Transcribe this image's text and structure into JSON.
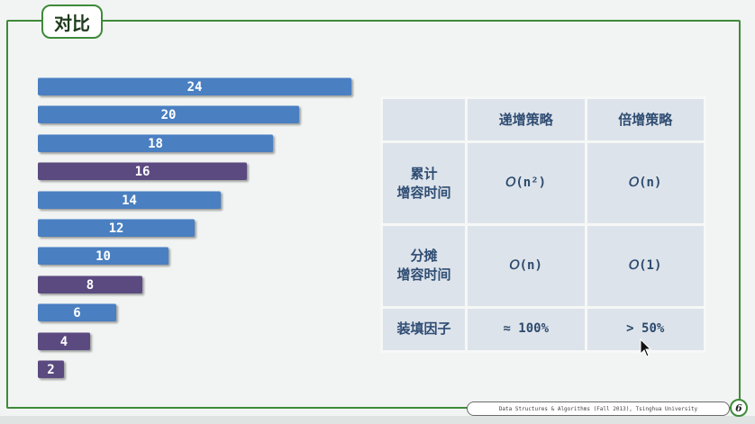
{
  "title": "对比",
  "bars": [
    {
      "label": "24",
      "value": 24,
      "color": "#4a7fc1"
    },
    {
      "label": "20",
      "value": 20,
      "color": "#4a7fc1"
    },
    {
      "label": "18",
      "value": 18,
      "color": "#4a7fc1"
    },
    {
      "label": "16",
      "value": 16,
      "color": "#5b4a80"
    },
    {
      "label": "14",
      "value": 14,
      "color": "#4a7fc1"
    },
    {
      "label": "12",
      "value": 12,
      "color": "#4a7fc1"
    },
    {
      "label": "10",
      "value": 10,
      "color": "#4a7fc1"
    },
    {
      "label": "8",
      "value": 8,
      "color": "#5b4a80"
    },
    {
      "label": "6",
      "value": 6,
      "color": "#4a7fc1"
    },
    {
      "label": "4",
      "value": 4,
      "color": "#5b4a80"
    },
    {
      "label": "2",
      "value": 2,
      "color": "#5b4a80"
    }
  ],
  "table": {
    "col_headers": [
      "递增策略",
      "倍增策略"
    ],
    "rows": [
      {
        "header": [
          "累计",
          "增容时间"
        ],
        "values": [
          "𝑂(n²)",
          "𝑂(n)"
        ]
      },
      {
        "header": [
          "分摊",
          "增容时间"
        ],
        "values": [
          "𝑂(n)",
          "𝑂(1)"
        ]
      },
      {
        "header": [
          "装填因子"
        ],
        "values": [
          "≈ 100%",
          "> 50%"
        ]
      }
    ]
  },
  "footer": {
    "text": "Data Structures & Algorithms (Fall 2013), Tsinghua University",
    "page": "6"
  },
  "colors": {
    "frame": "#3f8a3a",
    "bar_blue": "#4a7fc1",
    "bar_purple": "#5b4a80",
    "table_cell": "#dde3ea",
    "table_text": "#2f4d73"
  }
}
